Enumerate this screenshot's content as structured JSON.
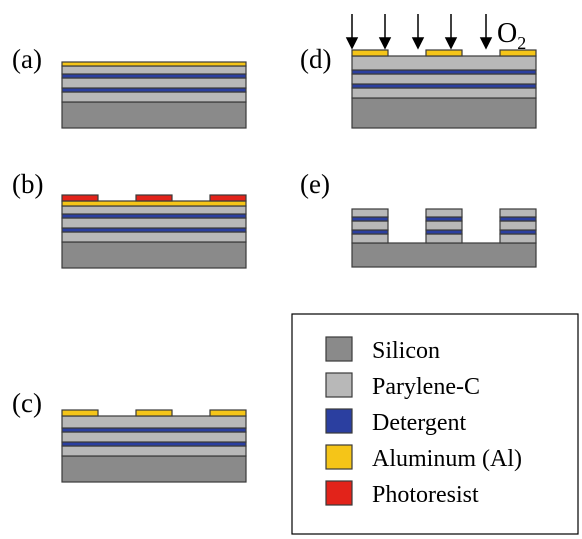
{
  "colors": {
    "silicon": "#8a8a8a",
    "parylene": "#b8b8b8",
    "detergent": "#2b3fa0",
    "aluminum": "#f5c518",
    "photoresist": "#e2231a"
  },
  "panels": {
    "a": {
      "label": "(a)"
    },
    "b": {
      "label": "(b)"
    },
    "c": {
      "label": "(c)"
    },
    "d": {
      "label": "(d)",
      "gas": {
        "main": "O",
        "sub": "2"
      },
      "arrow_icon": "down-arrow-icon"
    },
    "e": {
      "label": "(e)"
    }
  },
  "legend": {
    "items": [
      {
        "label": "Silicon",
        "color_key": "silicon"
      },
      {
        "label": "Parylene-C",
        "color_key": "parylene"
      },
      {
        "label": "Detergent",
        "color_key": "detergent"
      },
      {
        "label": "Aluminum (Al)",
        "color_key": "aluminum"
      },
      {
        "label": "Photoresist",
        "color_key": "photoresist"
      }
    ]
  }
}
